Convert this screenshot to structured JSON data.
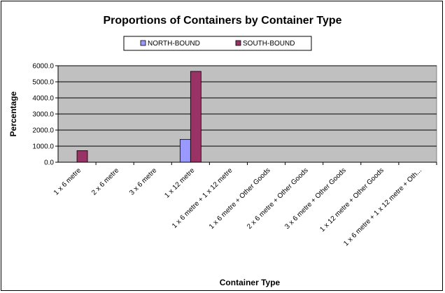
{
  "chart_data": {
    "type": "bar",
    "title": "Proportions of Containers by Container Type",
    "xlabel": "Container Type",
    "ylabel": "Percentage",
    "ylim": [
      0,
      6000
    ],
    "yticks": [
      "0.0",
      "1000.0",
      "2000.0",
      "3000.0",
      "4000.0",
      "5000.0",
      "6000.0"
    ],
    "grid": true,
    "legend_position": "top",
    "categories": [
      "1 x 6 metre",
      "2 x 6 metre",
      "3 x 6 metre",
      "1 x 12 metre",
      "1 x 6 metre + 1 x 12 metre",
      "1 x 6 metre + Other Goods",
      "2 x 6 metre + Other Goods",
      "3 x 6 metre + Other Goods",
      "1 x 12 metre + Other Goods",
      "1 x 6 metre + 1 x 12 metre + Oth..."
    ],
    "series": [
      {
        "name": "NORTH-BOUND",
        "color": "#9999ff",
        "values": [
          0,
          0,
          0,
          1420,
          0,
          0,
          0,
          0,
          0,
          0
        ]
      },
      {
        "name": "SOUTH-BOUND",
        "color": "#993366",
        "values": [
          720,
          0,
          0,
          5650,
          0,
          0,
          0,
          0,
          0,
          0
        ]
      }
    ],
    "plot_background": "#c0c0c0"
  }
}
